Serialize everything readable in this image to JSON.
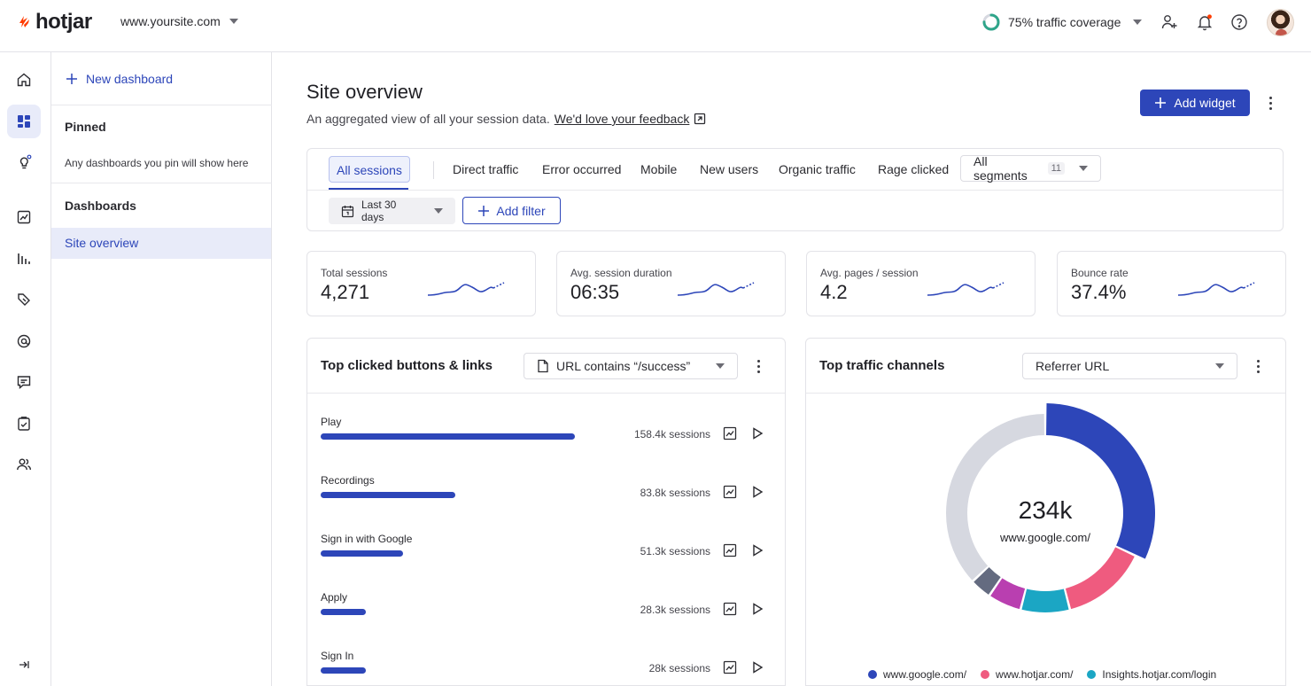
{
  "header": {
    "logo": "hotjar",
    "site": "www.yoursite.com",
    "coverage": "75% traffic coverage",
    "coverage_pct": 75,
    "accent": "#ff3c00"
  },
  "rail": {
    "icons": [
      "home-icon",
      "dashboard-icon",
      "lightbulb-icon",
      "trends-icon",
      "funnels-icon",
      "recordings-icon",
      "engage-icon",
      "feedback-icon",
      "surveys-icon",
      "users-icon",
      "collapse-icon"
    ]
  },
  "dash_panel": {
    "new_dashboard": "New dashboard",
    "pinned_title": "Pinned",
    "pinned_hint": "Any dashboards you pin will show here",
    "dashboards_title": "Dashboards",
    "items": [
      "Site overview"
    ]
  },
  "main": {
    "title": "Site overview",
    "subtitle": "An aggregated view of all your session data.",
    "feedback_link": "We'd love your feedback",
    "add_widget": "Add widget",
    "segments": [
      "All sessions",
      "Direct traffic",
      "Error occurred",
      "Mobile",
      "New users",
      "Organic traffic",
      "Rage clicked"
    ],
    "all_segments": "All segments",
    "all_segments_count": "11",
    "date_range": "Last 30 days",
    "add_filter": "Add filter"
  },
  "metrics": [
    {
      "label": "Total sessions",
      "value": "4,271"
    },
    {
      "label": "Avg. session duration",
      "value": "06:35"
    },
    {
      "label": "Avg. pages / session",
      "value": "4.2"
    },
    {
      "label": "Bounce rate",
      "value": "37.4%"
    }
  ],
  "clicked": {
    "title": "Top clicked buttons & links",
    "filter": "URL contains “/success”",
    "rows": [
      {
        "label": "Play",
        "sessions": "158.4k sessions",
        "value": 158.4
      },
      {
        "label": "Recordings",
        "sessions": "83.8k sessions",
        "value": 83.8
      },
      {
        "label": "Sign in with Google",
        "sessions": "51.3k sessions",
        "value": 51.3
      },
      {
        "label": "Apply",
        "sessions": "28.3k sessions",
        "value": 28.3
      },
      {
        "label": "Sign In",
        "sessions": "28k sessions",
        "value": 28
      }
    ]
  },
  "traffic": {
    "title": "Top traffic channels",
    "filter": "Referrer URL",
    "center_value": "234k",
    "center_label": "www.google.com/",
    "slices": [
      {
        "name": "www.google.com/",
        "share": 0.32,
        "color": "#2d46b9",
        "highlight": true
      },
      {
        "name": "www.hotjar.com/",
        "share": 0.14,
        "color": "#ef5b7f"
      },
      {
        "name": "Insights.hotjar.com/login",
        "share": 0.08,
        "color": "#1ba6c4"
      },
      {
        "name": "",
        "share": 0.055,
        "color": "#b93fb0"
      },
      {
        "name": "",
        "share": 0.035,
        "color": "#646b80"
      },
      {
        "name": "",
        "share": 0.37,
        "color": "#d6d8e0"
      }
    ],
    "legend": [
      "www.google.com/",
      "www.hotjar.com/",
      "Insights.hotjar.com/login"
    ]
  },
  "colors": {
    "primary": "#2d46b9",
    "primary_light": "#e8ebf9"
  }
}
